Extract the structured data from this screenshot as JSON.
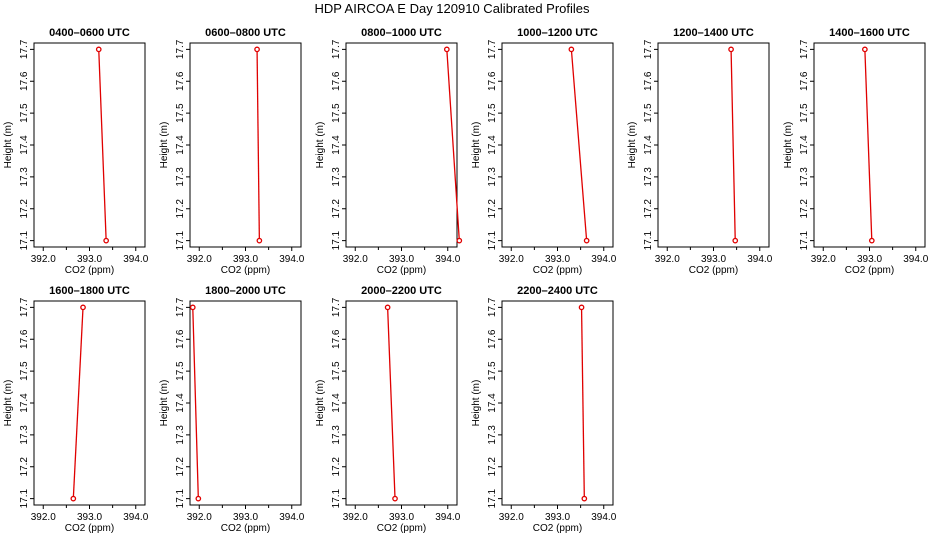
{
  "figure": {
    "title": "HDP AIRCOA E  Day 120910  Calibrated Profiles"
  },
  "chart_data": [
    {
      "type": "line",
      "title": "0400–0600 UTC",
      "xlabel": "CO2 (ppm)",
      "ylabel": "Height (m)",
      "xlim": [
        391.8,
        394.2
      ],
      "ylim": [
        17.08,
        17.72
      ],
      "xticks": [
        "392.0",
        "393.0",
        "394.0"
      ],
      "yticks": [
        "17.1",
        "17.2",
        "17.3",
        "17.4",
        "17.5",
        "17.6",
        "17.7"
      ],
      "x": [
        393.2,
        393.36
      ],
      "y": [
        17.7,
        17.1
      ]
    },
    {
      "type": "line",
      "title": "0600–0800 UTC",
      "xlabel": "CO2 (ppm)",
      "ylabel": "Height (m)",
      "xlim": [
        391.8,
        394.2
      ],
      "ylim": [
        17.08,
        17.72
      ],
      "xticks": [
        "392.0",
        "393.0",
        "394.0"
      ],
      "yticks": [
        "17.1",
        "17.2",
        "17.3",
        "17.4",
        "17.5",
        "17.6",
        "17.7"
      ],
      "x": [
        393.25,
        393.3
      ],
      "y": [
        17.7,
        17.1
      ]
    },
    {
      "type": "line",
      "title": "0800–1000 UTC",
      "xlabel": "CO2 (ppm)",
      "ylabel": "Height (m)",
      "xlim": [
        391.8,
        394.2
      ],
      "ylim": [
        17.08,
        17.72
      ],
      "xticks": [
        "392.0",
        "393.0",
        "394.0"
      ],
      "yticks": [
        "17.1",
        "17.2",
        "17.3",
        "17.4",
        "17.5",
        "17.6",
        "17.7"
      ],
      "x": [
        393.98,
        394.25
      ],
      "y": [
        17.7,
        17.1
      ]
    },
    {
      "type": "line",
      "title": "1000–1200 UTC",
      "xlabel": "CO2 (ppm)",
      "ylabel": "Height (m)",
      "xlim": [
        391.8,
        394.2
      ],
      "ylim": [
        17.08,
        17.72
      ],
      "xticks": [
        "392.0",
        "393.0",
        "394.0"
      ],
      "yticks": [
        "17.1",
        "17.2",
        "17.3",
        "17.4",
        "17.5",
        "17.6",
        "17.7"
      ],
      "x": [
        393.3,
        393.63
      ],
      "y": [
        17.7,
        17.1
      ]
    },
    {
      "type": "line",
      "title": "1200–1400 UTC",
      "xlabel": "CO2 (ppm)",
      "ylabel": "Height (m)",
      "xlim": [
        391.8,
        394.2
      ],
      "ylim": [
        17.08,
        17.72
      ],
      "xticks": [
        "392.0",
        "393.0",
        "394.0"
      ],
      "yticks": [
        "17.1",
        "17.2",
        "17.3",
        "17.4",
        "17.5",
        "17.6",
        "17.7"
      ],
      "x": [
        393.38,
        393.47
      ],
      "y": [
        17.7,
        17.1
      ]
    },
    {
      "type": "line",
      "title": "1400–1600 UTC",
      "xlabel": "CO2 (ppm)",
      "ylabel": "Height (m)",
      "xlim": [
        391.8,
        394.2
      ],
      "ylim": [
        17.08,
        17.72
      ],
      "xticks": [
        "392.0",
        "393.0",
        "394.0"
      ],
      "yticks": [
        "17.1",
        "17.2",
        "17.3",
        "17.4",
        "17.5",
        "17.6",
        "17.7"
      ],
      "x": [
        392.9,
        393.05
      ],
      "y": [
        17.7,
        17.1
      ]
    },
    {
      "type": "line",
      "title": "1600–1800 UTC",
      "xlabel": "CO2 (ppm)",
      "ylabel": "Height (m)",
      "xlim": [
        391.8,
        394.2
      ],
      "ylim": [
        17.08,
        17.72
      ],
      "xticks": [
        "392.0",
        "393.0",
        "394.0"
      ],
      "yticks": [
        "17.1",
        "17.2",
        "17.3",
        "17.4",
        "17.5",
        "17.6",
        "17.7"
      ],
      "x": [
        392.86,
        392.65
      ],
      "y": [
        17.7,
        17.1
      ]
    },
    {
      "type": "line",
      "title": "1800–2000 UTC",
      "xlabel": "CO2 (ppm)",
      "ylabel": "Height (m)",
      "xlim": [
        391.8,
        394.2
      ],
      "ylim": [
        17.08,
        17.72
      ],
      "xticks": [
        "392.0",
        "393.0",
        "394.0"
      ],
      "yticks": [
        "17.1",
        "17.2",
        "17.3",
        "17.4",
        "17.5",
        "17.6",
        "17.7"
      ],
      "x": [
        391.86,
        391.98
      ],
      "y": [
        17.7,
        17.1
      ]
    },
    {
      "type": "line",
      "title": "2000–2200 UTC",
      "xlabel": "CO2 (ppm)",
      "ylabel": "Height (m)",
      "xlim": [
        391.8,
        394.2
      ],
      "ylim": [
        17.08,
        17.72
      ],
      "xticks": [
        "392.0",
        "393.0",
        "394.0"
      ],
      "yticks": [
        "17.1",
        "17.2",
        "17.3",
        "17.4",
        "17.5",
        "17.6",
        "17.7"
      ],
      "x": [
        392.7,
        392.86
      ],
      "y": [
        17.7,
        17.1
      ]
    },
    {
      "type": "line",
      "title": "2200–2400 UTC",
      "xlabel": "CO2 (ppm)",
      "ylabel": "Height (m)",
      "xlim": [
        391.8,
        394.2
      ],
      "ylim": [
        17.08,
        17.72
      ],
      "xticks": [
        "392.0",
        "393.0",
        "394.0"
      ],
      "yticks": [
        "17.1",
        "17.2",
        "17.3",
        "17.4",
        "17.5",
        "17.6",
        "17.7"
      ],
      "x": [
        393.52,
        393.58
      ],
      "y": [
        17.7,
        17.1
      ]
    }
  ]
}
